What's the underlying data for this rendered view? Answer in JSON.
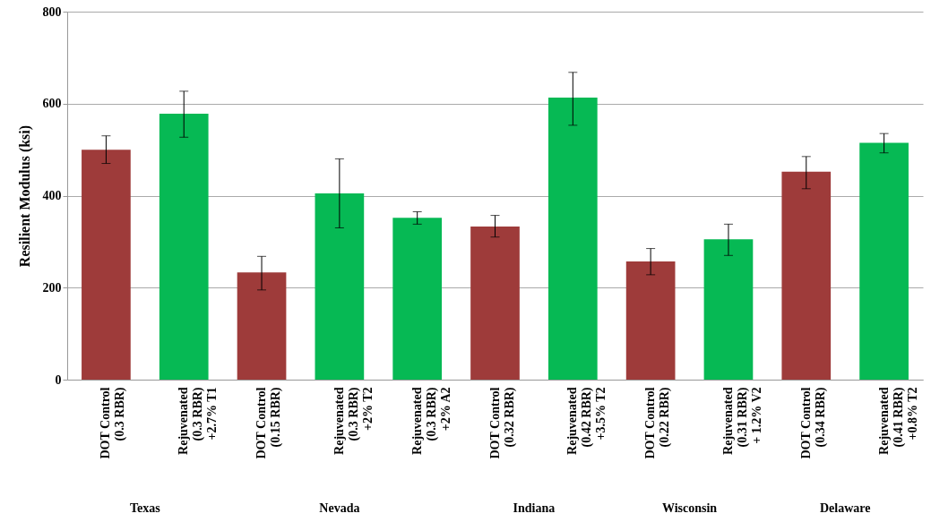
{
  "chart_data": {
    "type": "bar",
    "ylabel": "Resilient Modulus (ksi)",
    "categories": [
      "DOT Control\n(0.3 RBR)",
      "Rejuvenated\n(0.3 RBR)\n+2.7% T1",
      "DOT Control\n(0.15 RBR)",
      "Rejuvenated\n(0.3 RBR)\n+2% T2",
      "Rejuvenated\n(0.3 RBR)\n+2% A2",
      "DOT Control\n(0.32 RBR)",
      "Rejuvenated\n(0.42 RBR)\n+3.5% T2",
      "DOT Control\n(0.22 RBR)",
      "Rejuvenated\n(0.31 RBR)\n+ 1.2% V2",
      "DOT Control\n(0.34 RBR)",
      "Rejuvenated\n(0.41 RBR)\n+0.8% T2"
    ],
    "values": [
      500,
      578,
      233,
      405,
      352,
      333,
      613,
      257,
      305,
      452,
      515
    ],
    "colors": [
      "#9e3b3a",
      "#06b954",
      "#9e3b3a",
      "#06b954",
      "#06b954",
      "#9e3b3a",
      "#06b954",
      "#9e3b3a",
      "#06b954",
      "#9e3b3a",
      "#06b954"
    ],
    "errors": [
      [
        470,
        530
      ],
      [
        527,
        627
      ],
      [
        195,
        268
      ],
      [
        330,
        480
      ],
      [
        338,
        365
      ],
      [
        310,
        357
      ],
      [
        553,
        668
      ],
      [
        228,
        285
      ],
      [
        270,
        338
      ],
      [
        415,
        485
      ],
      [
        493,
        535
      ]
    ],
    "annotations": [
      "Texas",
      "Nevada",
      "Indiana",
      "Wisconsin",
      "Delaware"
    ],
    "ylim": [
      0,
      800
    ],
    "yticks": [
      0,
      200,
      400,
      600,
      800
    ],
    "grid": "y"
  }
}
